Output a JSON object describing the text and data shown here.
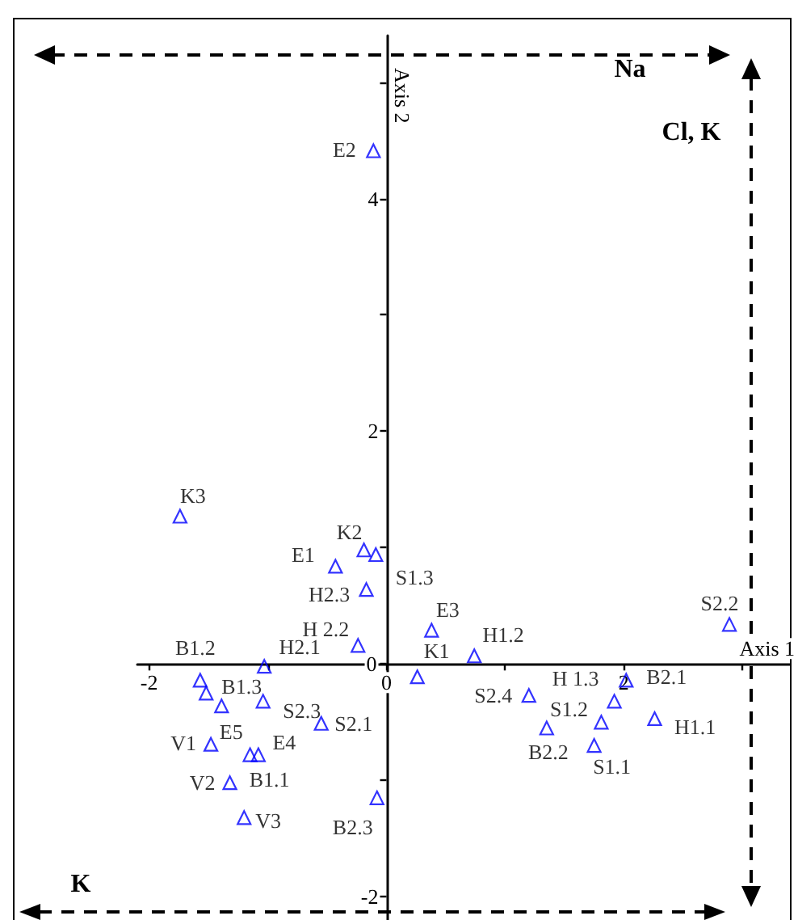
{
  "chart_data": {
    "type": "scatter",
    "xlabel": "Axis 1",
    "ylabel": "Axis 2",
    "annotations": [
      "Na",
      "Cl, K",
      "K"
    ],
    "x": [
      -0.11,
      -1.74,
      -0.19,
      -0.09,
      -0.43,
      -0.17,
      -0.24,
      0.38,
      0.26,
      0.74,
      2.89,
      -1.57,
      -1.03,
      -1.52,
      -1.04,
      -0.55,
      -1.39,
      -1.48,
      -1.08,
      -1.15,
      -1.32,
      -1.2,
      -0.08,
      1.2,
      1.92,
      2.02,
      1.81,
      2.26,
      1.35,
      1.75
    ],
    "values": [
      4.41,
      1.27,
      0.98,
      0.94,
      0.84,
      0.64,
      0.16,
      0.29,
      -0.11,
      0.07,
      0.34,
      -0.14,
      -0.02,
      -0.25,
      -0.32,
      -0.51,
      -0.36,
      -0.69,
      -0.78,
      -0.78,
      -1.02,
      -1.32,
      -1.15,
      -0.27,
      -0.32,
      -0.14,
      -0.5,
      -0.47,
      -0.55,
      -0.7
    ],
    "value_labels": [
      "E2",
      "K3",
      "K2",
      "S1.3",
      "E1",
      "H2.3",
      "H 2.2",
      "E3",
      "K1",
      "H1.2",
      "S2.2",
      "B1.2",
      "H2.1",
      "B1.3",
      "S2.3",
      "S2.1",
      "E5",
      "V1",
      "E4",
      "B1.1",
      "V2",
      "V3",
      "B2.3",
      "S2.4",
      "H 1.3",
      "B2.1",
      "S1.2",
      "H1.1",
      "B2.2",
      "S1.1"
    ],
    "color": "#0000ff",
    "marker": "triangle",
    "grid": false,
    "xlim": [
      -2.1,
      3.4
    ],
    "xticks": [
      -2,
      {
        "value": -1,
        "label": null
      },
      0,
      {
        "value": 1,
        "label": null
      },
      2,
      {
        "value": 3,
        "label": null
      }
    ],
    "ylim": [
      -2.2,
      5.4
    ],
    "yticks": [
      -2,
      {
        "value": -1,
        "label": null
      },
      0,
      {
        "value": 1,
        "label": null
      },
      2,
      {
        "value": 3,
        "label": null
      },
      4,
      {
        "value": 5,
        "label": null
      }
    ]
  }
}
